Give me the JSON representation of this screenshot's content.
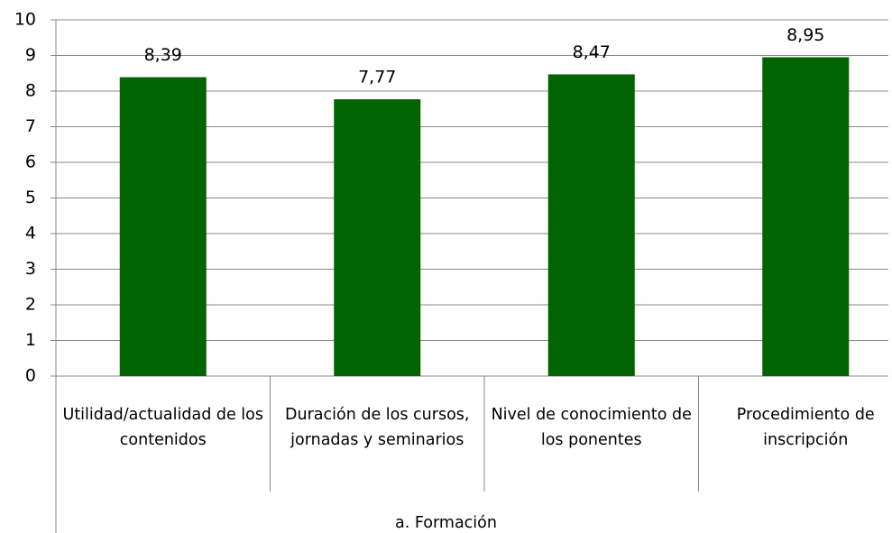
{
  "chart_data": {
    "type": "bar",
    "categories": [
      "Utilidad/actualidad de los contenidos",
      "Duración de los cursos, jornadas y seminarios",
      "Nivel de conocimiento de los ponentes",
      "Procedimiento de inscripción"
    ],
    "group_label": "a. Formación",
    "values": [
      8.39,
      7.77,
      8.47,
      8.95
    ],
    "value_labels": [
      "8,39",
      "7,77",
      "8,47",
      "8,95"
    ],
    "color": "#006400",
    "ylim": [
      0,
      10
    ],
    "yticks": [
      0,
      1,
      2,
      3,
      4,
      5,
      6,
      7,
      8,
      9,
      10
    ],
    "grid": true
  }
}
